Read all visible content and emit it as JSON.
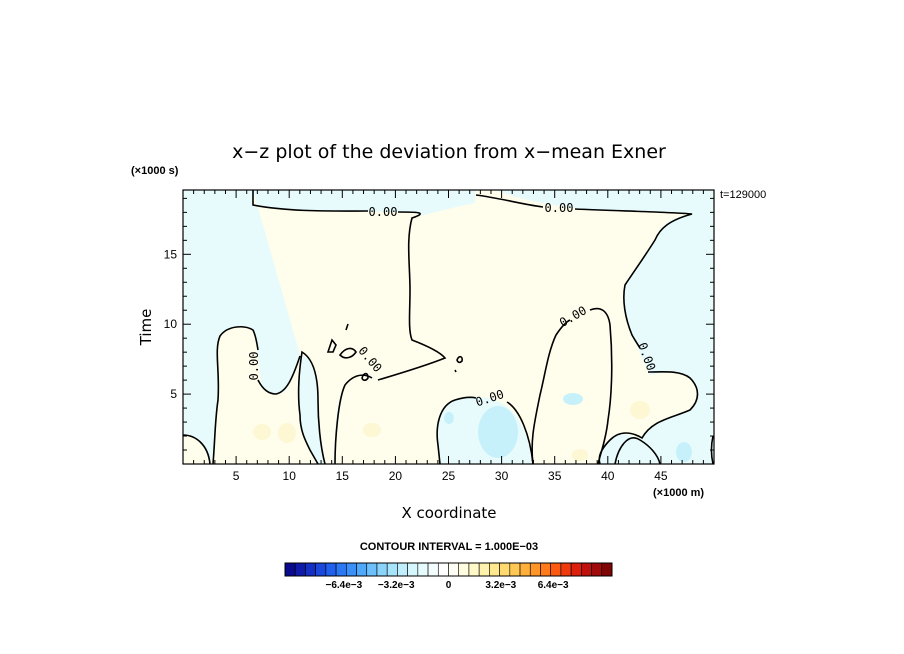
{
  "chart_data": {
    "type": "heatmap",
    "title": "x−z plot of the deviation from x−mean Exner",
    "xlabel": "X coordinate",
    "ylabel": "Time",
    "x_unit": "(×1000 m)",
    "y_unit": "(×1000 s)",
    "time_stamp": "t=129000",
    "xlim": [
      0,
      50
    ],
    "ylim": [
      0,
      19.6
    ],
    "x_ticks": [
      5,
      10,
      15,
      20,
      25,
      30,
      35,
      40,
      45
    ],
    "y_ticks": [
      5,
      10,
      15
    ],
    "contour_interval_text": "CONTOUR INTERVAL = 1.000E−03",
    "contour_level_label": "0.00",
    "colorbar": {
      "tick_labels": [
        "−6.4e−3",
        "−3.2e−3",
        "0",
        "3.2e−3",
        "6.4e−3"
      ],
      "tick_values": [
        -0.0064,
        -0.0032,
        0,
        0.0032,
        0.0064
      ],
      "range": [
        -0.01,
        0.01
      ],
      "colors": [
        "#0a0a8c",
        "#0f1aa8",
        "#1430c4",
        "#1a48dc",
        "#2060ec",
        "#2a78f4",
        "#3a90f8",
        "#50a8fa",
        "#6cc0fc",
        "#8ad4fc",
        "#a6e4fc",
        "#c0eefc",
        "#d4f6fc",
        "#e6fbfd",
        "#f4fdfe",
        "#ffffff",
        "#fffef4",
        "#fffce0",
        "#fff8c8",
        "#fff2ac",
        "#ffe88e",
        "#ffda70",
        "#ffc854",
        "#ffb03c",
        "#ff9628",
        "#ff7a1a",
        "#fc5a12",
        "#f03a0e",
        "#dc200c",
        "#c0100c",
        "#a00a0a",
        "#800606"
      ]
    },
    "field_colors": {
      "negative": "#e8fbfc",
      "positive": "#fffdeb",
      "stronger_negative": "#c6f1fa",
      "stronger_positive": "#fdf7d4"
    }
  }
}
